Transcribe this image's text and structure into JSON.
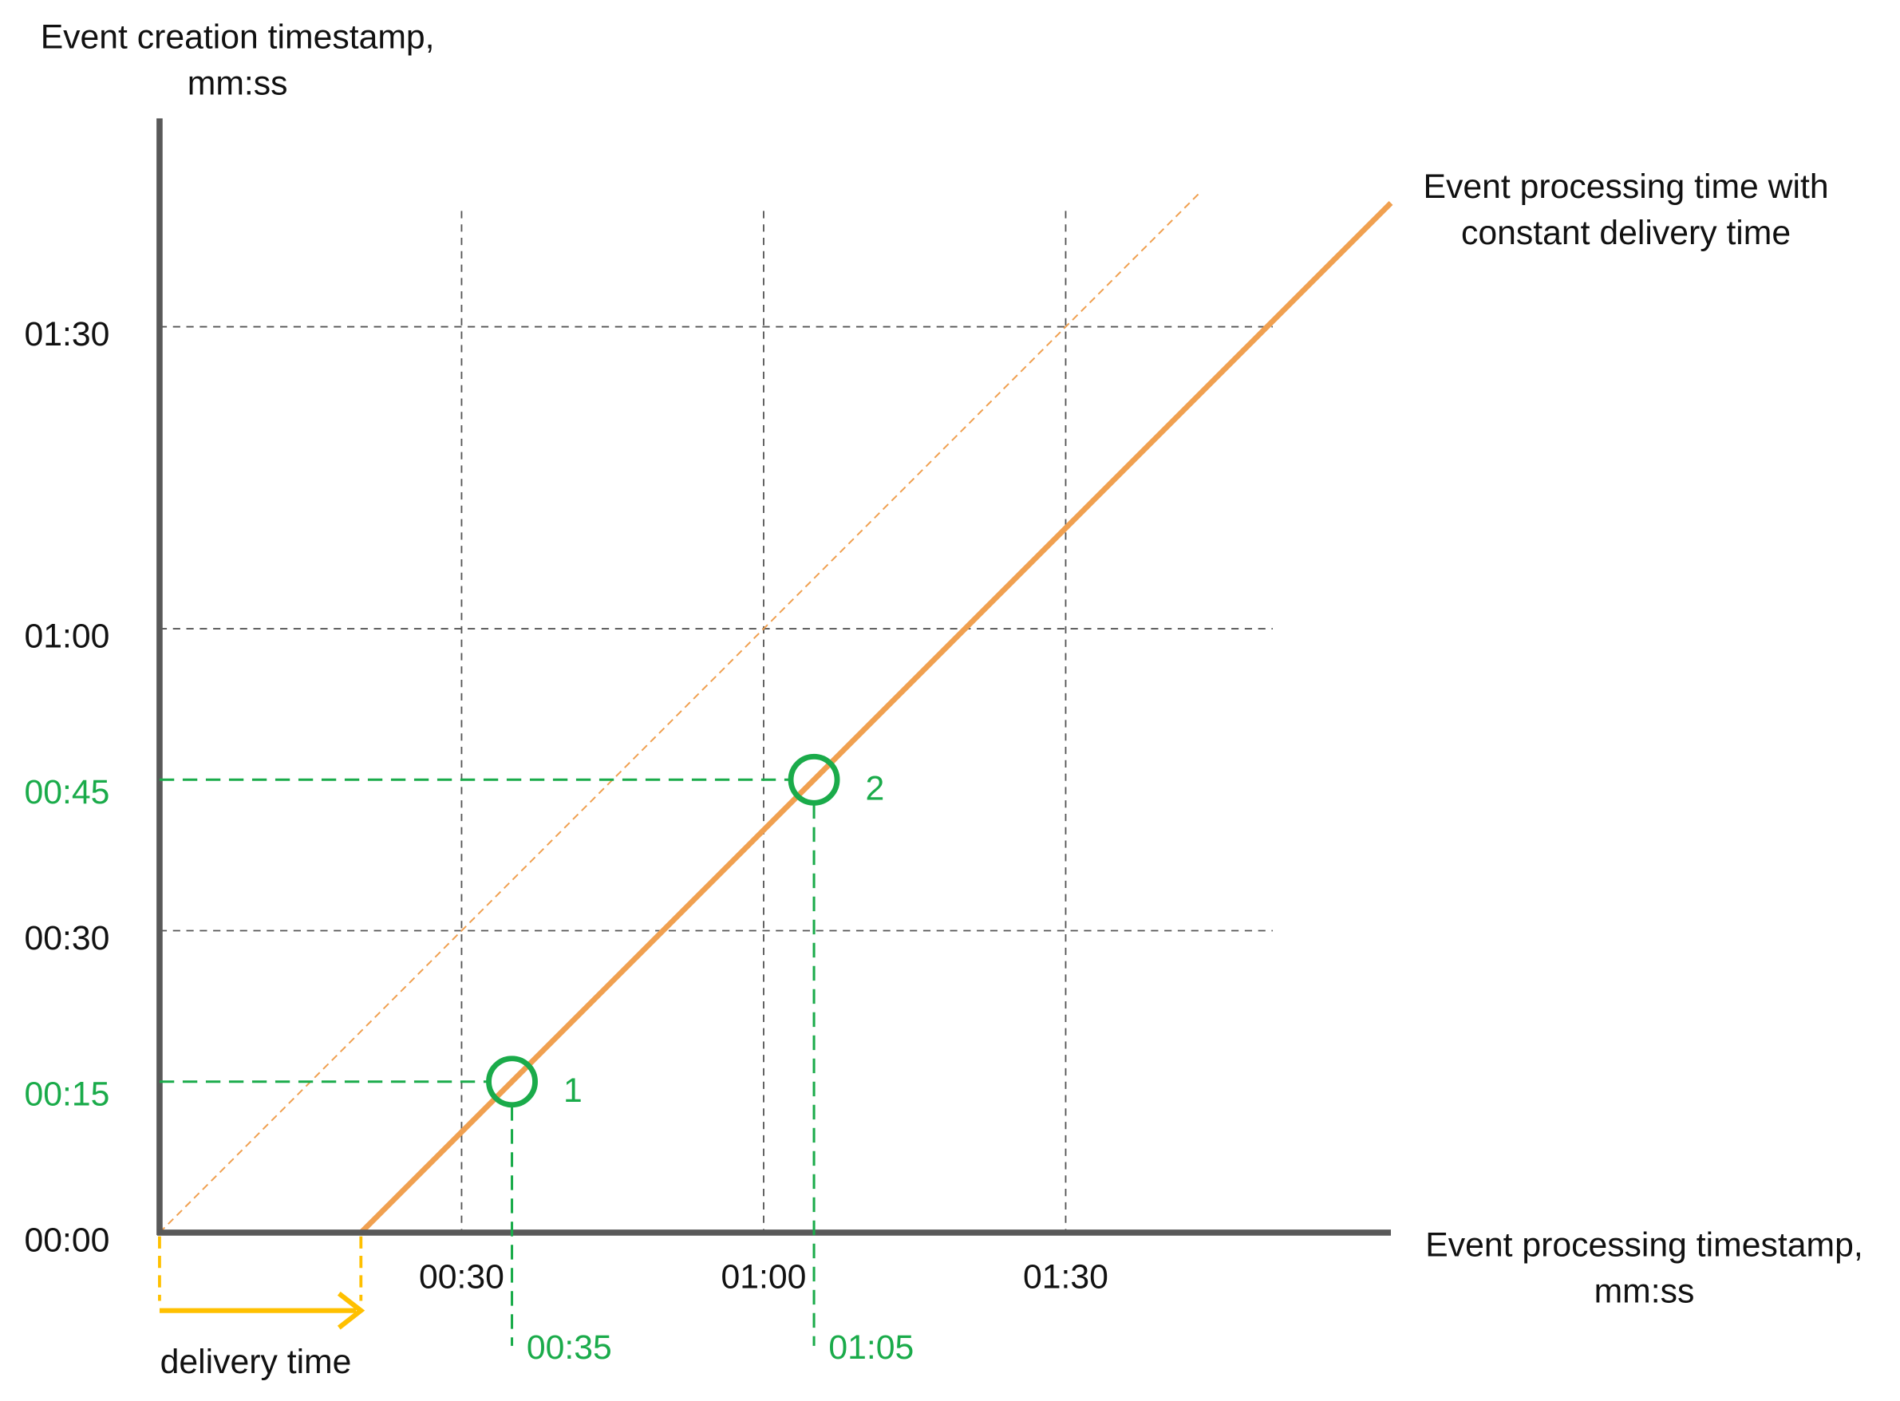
{
  "chart_data": {
    "type": "line",
    "y_label": [
      "Event creation timestamp,",
      "mm:ss"
    ],
    "x_label": [
      "Event processing timestamp,",
      "mm:ss"
    ],
    "xlim": [
      0,
      122.3
    ],
    "ylim": [
      0,
      110.7
    ],
    "xticks": [
      {
        "value": 30,
        "label": "00:30"
      },
      {
        "value": 60,
        "label": "01:00"
      },
      {
        "value": 90,
        "label": "01:30"
      }
    ],
    "yticks": [
      {
        "value": 0,
        "label": "00:00"
      },
      {
        "value": 30,
        "label": "00:30"
      },
      {
        "value": 60,
        "label": "01:00"
      },
      {
        "value": 90,
        "label": "01:30"
      }
    ],
    "grid": true,
    "series": [
      {
        "name": [
          "Event processing time with",
          "constant delivery time"
        ],
        "color": "#f0a050",
        "style": "solid",
        "x": [
          20,
          122.3
        ],
        "values": [
          0,
          102.3
        ]
      },
      {
        "color": "#f0a050",
        "style": "dashed",
        "x": [
          0,
          103.5
        ],
        "values": [
          0,
          103.5
        ]
      }
    ],
    "points": [
      {
        "name": "1",
        "x": 35,
        "y": 15,
        "x_label": "00:35",
        "y_label": "00:15"
      },
      {
        "name": "2",
        "x": 65,
        "y": 45,
        "x_label": "01:05",
        "y_label": "00:45"
      }
    ],
    "points_color": "#1aab4a",
    "delivery": {
      "label": "delivery time",
      "value": 20,
      "color": "#ffc000"
    }
  }
}
